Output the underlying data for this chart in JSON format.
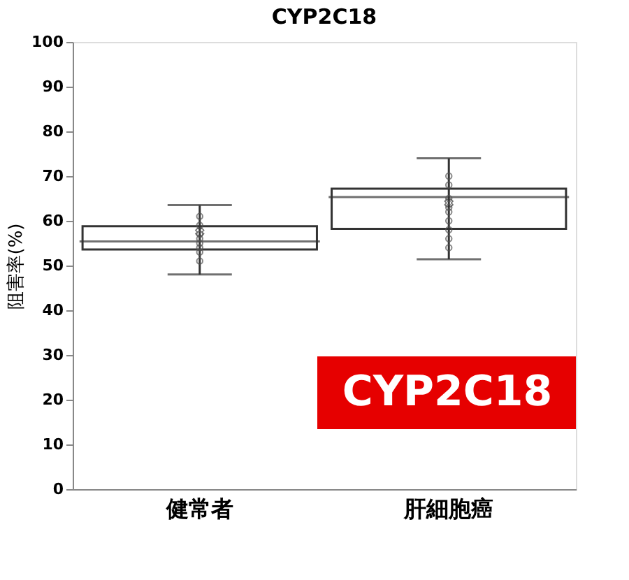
{
  "chart_data": {
    "type": "box",
    "title": "CYP2C18",
    "ylabel": "阻害率(%)",
    "categories": [
      "健常者",
      "肝細胞癌"
    ],
    "boxes": [
      {
        "low": 48,
        "q1": 53.6,
        "median": 55.4,
        "q3": 58.8,
        "high": 63.5,
        "mean": 57.5
      },
      {
        "low": 51.4,
        "q1": 58.2,
        "median": 65.3,
        "q3": 67.2,
        "high": 74,
        "mean": 64
      }
    ],
    "series": [
      {
        "type": "scatter",
        "color": "#555555",
        "marker": "circle",
        "x": [
          "健常者",
          "健常者",
          "健常者",
          "健常者",
          "健常者",
          "健常者",
          "健常者",
          "健常者",
          "肝細胞癌",
          "肝細胞癌",
          "肝細胞癌",
          "肝細胞癌",
          "肝細胞癌",
          "肝細胞癌",
          "肝細胞癌",
          "肝細胞癌",
          "肝細胞癌"
        ],
        "values": [
          61,
          59,
          57,
          56,
          55,
          54,
          53,
          51,
          70,
          68,
          65,
          63,
          62,
          60,
          58,
          56,
          54
        ]
      }
    ],
    "ylim": [
      0,
      100
    ],
    "yticks": [
      0,
      10,
      20,
      30,
      40,
      50,
      60,
      70,
      80,
      90,
      100
    ],
    "grid": false,
    "annotations": [
      "CYP2C18"
    ]
  }
}
